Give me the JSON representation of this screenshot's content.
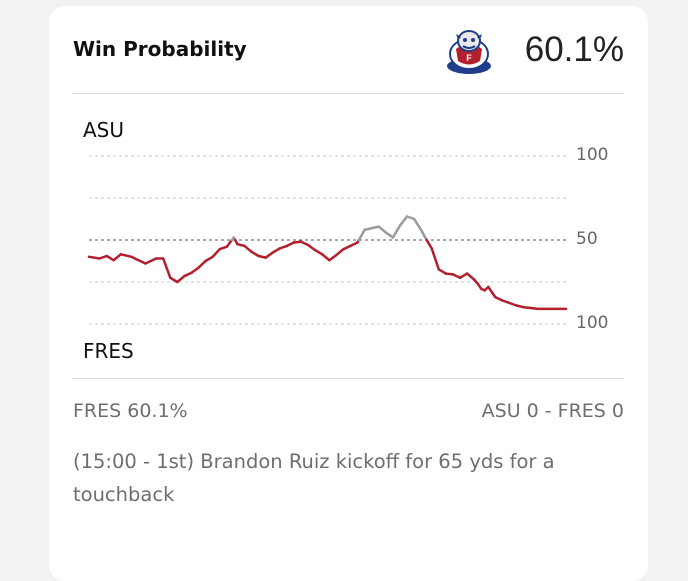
{
  "header": {
    "title": "Win Probability",
    "win_pct": "60.1%",
    "logo_icon": "fresno-state-bulldog-logo"
  },
  "chart_data": {
    "type": "line",
    "title": "",
    "top_team": "ASU",
    "bottom_team": "FRES",
    "yticks": [
      "100",
      "50",
      "100"
    ],
    "ylim": [
      -100,
      100
    ],
    "x_axis": "play number",
    "xlim": [
      0,
      135
    ],
    "colors": {
      "asu": "#9b9b9b",
      "fres": "#b21f2d"
    },
    "series": [
      {
        "x": [
          0,
          3,
          5,
          7,
          9,
          12,
          14,
          16,
          19,
          21,
          23,
          25,
          27,
          29,
          31,
          33,
          35,
          37,
          39,
          41,
          42,
          44,
          46,
          48,
          50,
          52,
          54,
          56,
          58,
          60,
          62,
          64,
          66,
          68,
          70,
          72,
          74,
          76,
          78,
          80,
          82,
          84,
          86,
          88,
          90,
          92,
          94,
          95,
          97,
          99,
          101,
          103,
          105,
          107,
          109,
          110,
          111,
          112,
          113,
          114,
          115,
          117,
          119,
          121,
          123,
          125,
          127,
          129,
          131,
          133,
          135
        ],
        "y": [
          -20,
          -22,
          -19,
          -24,
          -17,
          -20,
          -24,
          -28,
          -22,
          -22,
          -45,
          -50,
          -43,
          -39,
          -33,
          -25,
          -20,
          -11,
          -8,
          3,
          -5,
          -7,
          -14,
          -19,
          -21,
          -15,
          -10,
          -7,
          -3,
          -2,
          -6,
          -12,
          -17,
          -24,
          -18,
          -11,
          -7,
          -3,
          12,
          14,
          16,
          9,
          3,
          17,
          28,
          25,
          12,
          4,
          -10,
          -35,
          -40,
          -41,
          -45,
          -40,
          -47,
          -52,
          -58,
          -60,
          -56,
          -62,
          -68,
          -72,
          -75,
          -78,
          -80,
          -81,
          -82,
          -82,
          -82,
          -82,
          -82
        ]
      }
    ]
  },
  "summary": {
    "team_pct": "FRES 60.1%",
    "score": "ASU 0  - FRES 0"
  },
  "play": {
    "text": "(15:00 - 1st) Brandon Ruiz kickoff for 65 yds for a touchback"
  }
}
